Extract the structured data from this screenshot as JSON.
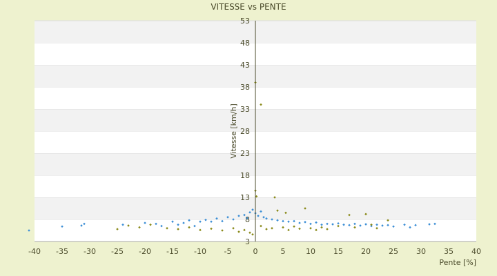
{
  "chart_data": {
    "type": "scatter",
    "title": "VITESSE vs PENTE",
    "xlabel": "Pente [%]",
    "ylabel": "Vitesse [km/h]",
    "xlim": [
      -40,
      40
    ],
    "ylim": [
      3,
      53
    ],
    "xticks": [
      -40,
      -35,
      -30,
      -25,
      -20,
      -15,
      -10,
      -5,
      0,
      5,
      10,
      15,
      20,
      25,
      30,
      35,
      40
    ],
    "yticks": [
      3,
      8,
      13,
      18,
      23,
      28,
      33,
      38,
      43,
      48,
      53
    ],
    "grid": "alternating horizontal bands",
    "legend": "none",
    "series": [
      {
        "color": "#3d8fd6",
        "points": [
          [
            -41,
            5.5
          ],
          [
            -35,
            6.4
          ],
          [
            -31.5,
            6.6
          ],
          [
            -31,
            7.0
          ],
          [
            -24,
            6.8
          ],
          [
            -20,
            7.2
          ],
          [
            -18,
            7.0
          ],
          [
            -17,
            6.5
          ],
          [
            -15,
            7.5
          ],
          [
            -14,
            6.8
          ],
          [
            -13,
            7.2
          ],
          [
            -12,
            7.8
          ],
          [
            -11,
            6.5
          ],
          [
            -10,
            7.5
          ],
          [
            -9,
            7.9
          ],
          [
            -8,
            7.5
          ],
          [
            -7,
            8.2
          ],
          [
            -6,
            7.6
          ],
          [
            -5,
            8.5
          ],
          [
            -4,
            8.0
          ],
          [
            -3,
            8.8
          ],
          [
            -2,
            9.0
          ],
          [
            -1.5,
            8.3
          ],
          [
            -1,
            9.6
          ],
          [
            -0.5,
            10.2
          ],
          [
            0,
            9.4
          ],
          [
            0.5,
            8.8
          ],
          [
            1,
            9.8
          ],
          [
            1.5,
            8.5
          ],
          [
            2,
            8.2
          ],
          [
            3,
            8.0
          ],
          [
            4,
            7.8
          ],
          [
            5,
            7.6
          ],
          [
            6,
            7.5
          ],
          [
            7,
            7.6
          ],
          [
            8,
            7.2
          ],
          [
            9,
            7.4
          ],
          [
            10,
            7.0
          ],
          [
            11,
            7.3
          ],
          [
            12,
            6.8
          ],
          [
            13,
            7.0
          ],
          [
            14,
            6.9
          ],
          [
            15,
            7.1
          ],
          [
            16,
            6.8
          ],
          [
            17,
            6.7
          ],
          [
            18,
            7.0
          ],
          [
            19,
            6.6
          ],
          [
            20,
            6.9
          ],
          [
            21,
            6.5
          ],
          [
            22,
            6.8
          ],
          [
            23,
            6.6
          ],
          [
            24,
            6.7
          ],
          [
            25,
            6.4
          ],
          [
            27,
            6.8
          ],
          [
            28,
            6.2
          ],
          [
            29,
            6.7
          ],
          [
            31.5,
            6.9
          ],
          [
            32.5,
            7.0
          ]
        ]
      },
      {
        "color": "#8a8a1a",
        "points": [
          [
            -25,
            5.8
          ],
          [
            -23,
            6.6
          ],
          [
            -21,
            6.2
          ],
          [
            -19,
            6.8
          ],
          [
            -16,
            6.0
          ],
          [
            -14,
            5.8
          ],
          [
            -12,
            6.2
          ],
          [
            -10,
            5.6
          ],
          [
            -8,
            5.9
          ],
          [
            -6,
            5.5
          ],
          [
            -4,
            6.0
          ],
          [
            -3,
            5.2
          ],
          [
            -2,
            5.6
          ],
          [
            -1,
            5.0
          ],
          [
            -0.5,
            4.6
          ],
          [
            0,
            14.5
          ],
          [
            0,
            39.0
          ],
          [
            0.2,
            13.2
          ],
          [
            1,
            34.0
          ],
          [
            1,
            6.5
          ],
          [
            2,
            5.8
          ],
          [
            3,
            6.0
          ],
          [
            3.5,
            13.0
          ],
          [
            4,
            10.0
          ],
          [
            5,
            6.2
          ],
          [
            5.5,
            9.5
          ],
          [
            6,
            5.6
          ],
          [
            7,
            6.4
          ],
          [
            8,
            5.9
          ],
          [
            9,
            10.5
          ],
          [
            10,
            6.0
          ],
          [
            11,
            5.6
          ],
          [
            12,
            6.2
          ],
          [
            13,
            5.8
          ],
          [
            15,
            6.5
          ],
          [
            17,
            9.0
          ],
          [
            18,
            6.2
          ],
          [
            20,
            9.2
          ],
          [
            21,
            6.8
          ],
          [
            22,
            6.0
          ],
          [
            24,
            7.8
          ]
        ]
      }
    ]
  }
}
